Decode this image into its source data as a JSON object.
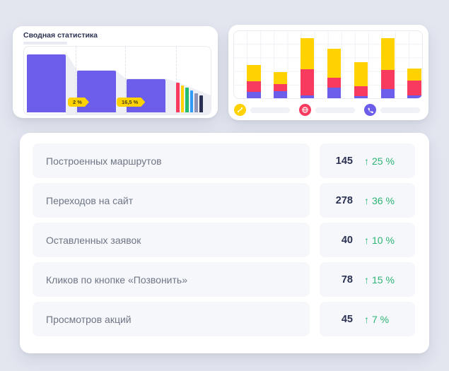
{
  "colors": {
    "page_bg": "#E3E6EF",
    "card_bg": "#FFFFFF",
    "purple": "#6C5DEB",
    "pink": "#F93A5F",
    "yellow": "#FFD200",
    "green": "#22BD6E",
    "blue": "#2F9BF6",
    "slate": "#8C93B6",
    "navy": "#2B3152",
    "text_dark": "#2B3152",
    "text_gray": "#6E7585",
    "green_text": "#2BB573",
    "row_bg": "#F6F7FA",
    "panel_border": "#E9EBF2",
    "legend_pill": "#EFF1F6",
    "silhouette": "#EDEFF5"
  },
  "summary_card": {
    "title": "Сводная статистика",
    "chart_data": {
      "type": "bar",
      "title": "Сводная статистика",
      "bars": [
        {
          "height_pct": 88.5,
          "color": "purple"
        },
        {
          "height_pct": 63.5,
          "color": "purple"
        },
        {
          "height_pct": 51.0,
          "color": "purple"
        }
      ],
      "mini_bars": [
        {
          "height_pct": 45.5,
          "color": "pink"
        },
        {
          "height_pct": 41.3,
          "color": "yellow"
        },
        {
          "height_pct": 37.2,
          "color": "green"
        },
        {
          "height_pct": 33.3,
          "color": "blue"
        },
        {
          "height_pct": 29.5,
          "color": "slate"
        },
        {
          "height_pct": 25.7,
          "color": "navy"
        }
      ],
      "badges": [
        {
          "label": "2 %"
        },
        {
          "label": "16,5 %"
        }
      ]
    }
  },
  "stacked_card": {
    "chart_data": {
      "type": "stacked-bar",
      "segment_order": [
        "yellow",
        "pink",
        "purple"
      ],
      "bars": [
        {
          "yellow": 25,
          "pink": 16,
          "purple": 9
        },
        {
          "yellow": 18,
          "pink": 10,
          "purple": 11
        },
        {
          "yellow": 47,
          "pink": 39,
          "purple": 4
        },
        {
          "yellow": 43,
          "pink": 15,
          "purple": 16
        },
        {
          "yellow": 36,
          "pink": 15,
          "purple": 3
        },
        {
          "yellow": 47,
          "pink": 28,
          "purple": 14
        },
        {
          "yellow": 18,
          "pink": 22,
          "purple": 4
        }
      ]
    },
    "legend": [
      {
        "icon": "route-icon",
        "color": "#FFD200"
      },
      {
        "icon": "globe-icon",
        "color": "#F93A5F"
      },
      {
        "icon": "phone-icon",
        "color": "#6C5DEB"
      }
    ]
  },
  "metrics_card": {
    "arrow_glyph": "↑",
    "rows": [
      {
        "label": "Построенных маршрутов",
        "value": "145",
        "delta": "25 %",
        "trend": "up"
      },
      {
        "label": "Переходов на сайт",
        "value": "278",
        "delta": "36 %",
        "trend": "up"
      },
      {
        "label": "Оставленных заявок",
        "value": "40",
        "delta": "10 %",
        "trend": "up"
      },
      {
        "label": "Кликов по кнопке «Позвонить»",
        "value": "78",
        "delta": "15 %",
        "trend": "up"
      },
      {
        "label": "Просмотров акций",
        "value": "45",
        "delta": "7 %",
        "trend": "up"
      }
    ]
  }
}
